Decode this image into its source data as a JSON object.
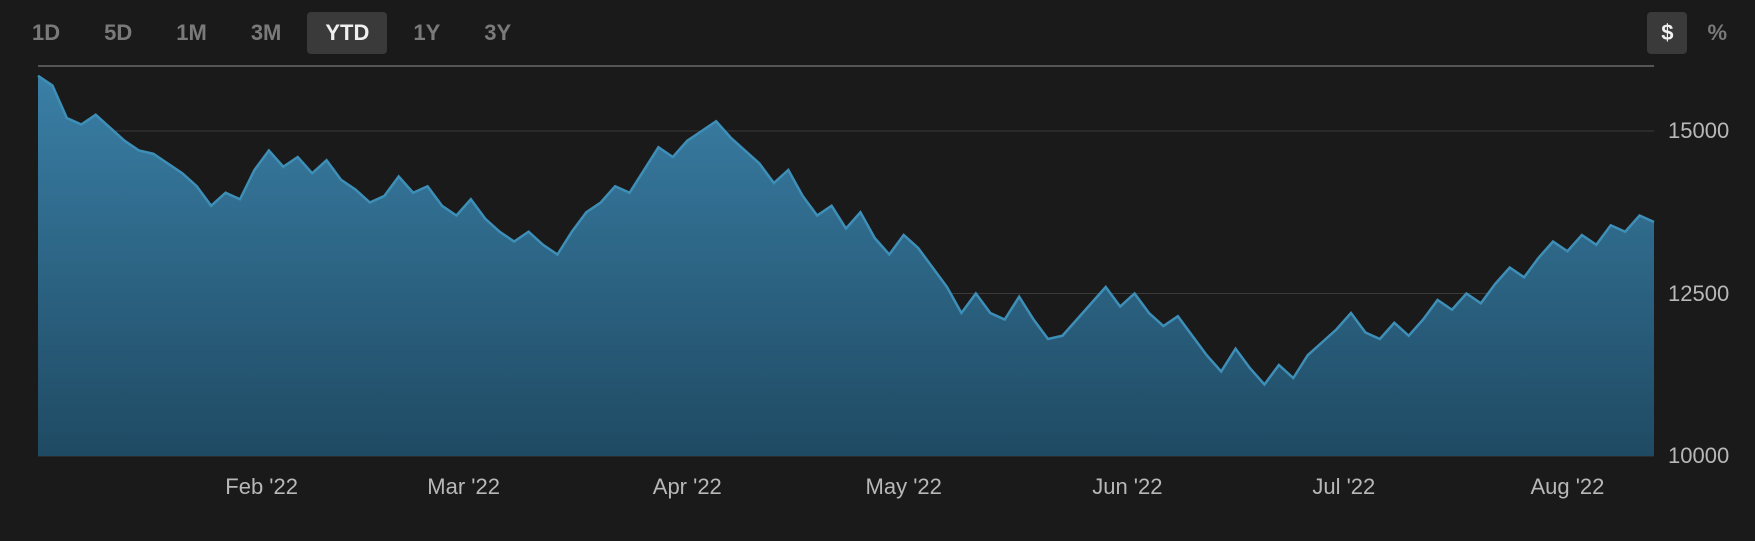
{
  "timeframe_tabs": [
    {
      "label": "1D",
      "active": false
    },
    {
      "label": "5D",
      "active": false
    },
    {
      "label": "1M",
      "active": false
    },
    {
      "label": "3M",
      "active": false
    },
    {
      "label": "YTD",
      "active": true
    },
    {
      "label": "1Y",
      "active": false
    },
    {
      "label": "3Y",
      "active": false
    }
  ],
  "unit_tabs": [
    {
      "label": "$",
      "active": true
    },
    {
      "label": "%",
      "active": false
    }
  ],
  "chart": {
    "type": "area",
    "background_color": "#1a1a1a",
    "grid_color": "#3a3a3a",
    "top_border_color": "#555555",
    "line_color": "#3e8fb8",
    "fill_top_color": "#3a7fa6",
    "fill_bottom_color": "#1f4a63",
    "line_width": 2.5,
    "axis_label_color": "#b8b8b8",
    "axis_label_fontsize": 22,
    "tab_label_fontsize": 22,
    "tab_color_inactive": "#7a7a7a",
    "tab_color_active_fg": "#f0f0f0",
    "tab_color_active_bg": "#3a3a3a",
    "x_range": [
      0,
      224
    ],
    "y_range": [
      10000,
      16000
    ],
    "y_ticks": [
      {
        "value": 10000,
        "label": "10000"
      },
      {
        "value": 12500,
        "label": "12500"
      },
      {
        "value": 15000,
        "label": "15000"
      }
    ],
    "x_ticks": [
      {
        "value": 31,
        "label": "Feb '22"
      },
      {
        "value": 59,
        "label": "Mar '22"
      },
      {
        "value": 90,
        "label": "Apr '22"
      },
      {
        "value": 120,
        "label": "May '22"
      },
      {
        "value": 151,
        "label": "Jun '22"
      },
      {
        "value": 181,
        "label": "Jul '22"
      },
      {
        "value": 212,
        "label": "Aug '22"
      }
    ],
    "series": [
      {
        "x": 0,
        "y": 15850
      },
      {
        "x": 2,
        "y": 15700
      },
      {
        "x": 4,
        "y": 15200
      },
      {
        "x": 6,
        "y": 15100
      },
      {
        "x": 8,
        "y": 15250
      },
      {
        "x": 10,
        "y": 15050
      },
      {
        "x": 12,
        "y": 14850
      },
      {
        "x": 14,
        "y": 14700
      },
      {
        "x": 16,
        "y": 14650
      },
      {
        "x": 18,
        "y": 14500
      },
      {
        "x": 20,
        "y": 14350
      },
      {
        "x": 22,
        "y": 14150
      },
      {
        "x": 24,
        "y": 13850
      },
      {
        "x": 26,
        "y": 14050
      },
      {
        "x": 28,
        "y": 13950
      },
      {
        "x": 30,
        "y": 14400
      },
      {
        "x": 32,
        "y": 14700
      },
      {
        "x": 34,
        "y": 14450
      },
      {
        "x": 36,
        "y": 14600
      },
      {
        "x": 38,
        "y": 14350
      },
      {
        "x": 40,
        "y": 14550
      },
      {
        "x": 42,
        "y": 14250
      },
      {
        "x": 44,
        "y": 14100
      },
      {
        "x": 46,
        "y": 13900
      },
      {
        "x": 48,
        "y": 14000
      },
      {
        "x": 50,
        "y": 14300
      },
      {
        "x": 52,
        "y": 14050
      },
      {
        "x": 54,
        "y": 14150
      },
      {
        "x": 56,
        "y": 13850
      },
      {
        "x": 58,
        "y": 13700
      },
      {
        "x": 60,
        "y": 13950
      },
      {
        "x": 62,
        "y": 13650
      },
      {
        "x": 64,
        "y": 13450
      },
      {
        "x": 66,
        "y": 13300
      },
      {
        "x": 68,
        "y": 13450
      },
      {
        "x": 70,
        "y": 13250
      },
      {
        "x": 72,
        "y": 13100
      },
      {
        "x": 74,
        "y": 13450
      },
      {
        "x": 76,
        "y": 13750
      },
      {
        "x": 78,
        "y": 13900
      },
      {
        "x": 80,
        "y": 14150
      },
      {
        "x": 82,
        "y": 14050
      },
      {
        "x": 84,
        "y": 14400
      },
      {
        "x": 86,
        "y": 14750
      },
      {
        "x": 88,
        "y": 14600
      },
      {
        "x": 90,
        "y": 14850
      },
      {
        "x": 92,
        "y": 15000
      },
      {
        "x": 94,
        "y": 15150
      },
      {
        "x": 96,
        "y": 14900
      },
      {
        "x": 98,
        "y": 14700
      },
      {
        "x": 100,
        "y": 14500
      },
      {
        "x": 102,
        "y": 14200
      },
      {
        "x": 104,
        "y": 14400
      },
      {
        "x": 106,
        "y": 14000
      },
      {
        "x": 108,
        "y": 13700
      },
      {
        "x": 110,
        "y": 13850
      },
      {
        "x": 112,
        "y": 13500
      },
      {
        "x": 114,
        "y": 13750
      },
      {
        "x": 116,
        "y": 13350
      },
      {
        "x": 118,
        "y": 13100
      },
      {
        "x": 120,
        "y": 13400
      },
      {
        "x": 122,
        "y": 13200
      },
      {
        "x": 124,
        "y": 12900
      },
      {
        "x": 126,
        "y": 12600
      },
      {
        "x": 128,
        "y": 12200
      },
      {
        "x": 130,
        "y": 12500
      },
      {
        "x": 132,
        "y": 12200
      },
      {
        "x": 134,
        "y": 12100
      },
      {
        "x": 136,
        "y": 12450
      },
      {
        "x": 138,
        "y": 12100
      },
      {
        "x": 140,
        "y": 11800
      },
      {
        "x": 142,
        "y": 11850
      },
      {
        "x": 144,
        "y": 12100
      },
      {
        "x": 146,
        "y": 12350
      },
      {
        "x": 148,
        "y": 12600
      },
      {
        "x": 150,
        "y": 12300
      },
      {
        "x": 152,
        "y": 12500
      },
      {
        "x": 154,
        "y": 12200
      },
      {
        "x": 156,
        "y": 12000
      },
      {
        "x": 158,
        "y": 12150
      },
      {
        "x": 160,
        "y": 11850
      },
      {
        "x": 162,
        "y": 11550
      },
      {
        "x": 164,
        "y": 11300
      },
      {
        "x": 166,
        "y": 11650
      },
      {
        "x": 168,
        "y": 11350
      },
      {
        "x": 170,
        "y": 11100
      },
      {
        "x": 172,
        "y": 11400
      },
      {
        "x": 174,
        "y": 11200
      },
      {
        "x": 176,
        "y": 11550
      },
      {
        "x": 178,
        "y": 11750
      },
      {
        "x": 180,
        "y": 11950
      },
      {
        "x": 182,
        "y": 12200
      },
      {
        "x": 184,
        "y": 11900
      },
      {
        "x": 186,
        "y": 11800
      },
      {
        "x": 188,
        "y": 12050
      },
      {
        "x": 190,
        "y": 11850
      },
      {
        "x": 192,
        "y": 12100
      },
      {
        "x": 194,
        "y": 12400
      },
      {
        "x": 196,
        "y": 12250
      },
      {
        "x": 198,
        "y": 12500
      },
      {
        "x": 200,
        "y": 12350
      },
      {
        "x": 202,
        "y": 12650
      },
      {
        "x": 204,
        "y": 12900
      },
      {
        "x": 206,
        "y": 12750
      },
      {
        "x": 208,
        "y": 13050
      },
      {
        "x": 210,
        "y": 13300
      },
      {
        "x": 212,
        "y": 13150
      },
      {
        "x": 214,
        "y": 13400
      },
      {
        "x": 216,
        "y": 13250
      },
      {
        "x": 218,
        "y": 13550
      },
      {
        "x": 220,
        "y": 13450
      },
      {
        "x": 222,
        "y": 13700
      },
      {
        "x": 224,
        "y": 13600
      }
    ]
  }
}
